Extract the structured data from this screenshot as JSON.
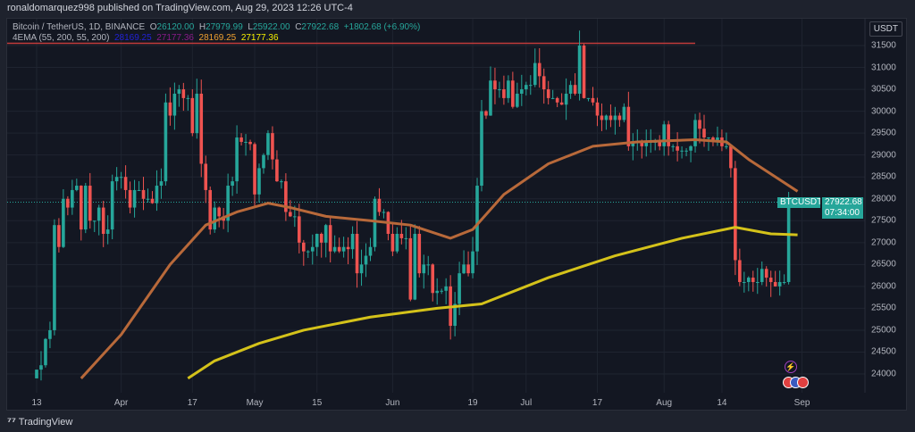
{
  "header": {
    "published": "ronaldomarquez998 published on TradingView.com, Aug 29, 2023 12:26 UTC-4"
  },
  "legend": {
    "symbol": "Bitcoin / TetherUS, 1D, BINANCE",
    "o_label": "O",
    "o": "26120.00",
    "h_label": "H",
    "h": "27979.99",
    "l_label": "L",
    "l": "25922.00",
    "c_label": "C",
    "c": "27922.68",
    "change": "+1802.68 (+6.90%)",
    "ema_name": "4EMA (55, 200, 55, 200)",
    "ema_vals": [
      "28169.25",
      "27177.36",
      "28169.25",
      "27177.36"
    ],
    "ema_colors": [
      "#2121d6",
      "#8a1a8a",
      "#f0a030",
      "#f5f000"
    ]
  },
  "currency": "USDT",
  "price_axis": [
    31500,
    31000,
    30500,
    30000,
    29500,
    29000,
    28500,
    28000,
    27500,
    27000,
    26500,
    26000,
    25500,
    25000,
    24500,
    24000
  ],
  "time_axis": [
    {
      "label": "13",
      "i": 0
    },
    {
      "label": "Apr",
      "i": 19
    },
    {
      "label": "17",
      "i": 35
    },
    {
      "label": "May",
      "i": 49
    },
    {
      "label": "15",
      "i": 63
    },
    {
      "label": "Jun",
      "i": 80
    },
    {
      "label": "19",
      "i": 98
    },
    {
      "label": "Jul",
      "i": 110
    },
    {
      "label": "17",
      "i": 126
    },
    {
      "label": "Aug",
      "i": 141
    },
    {
      "label": "14",
      "i": 154
    },
    {
      "label": "Sep",
      "i": 172
    }
  ],
  "last_price": {
    "symbol": "BTCUSDT",
    "price": "27922.68",
    "countdown": "07:34:00",
    "value": 27922.68
  },
  "resistance_level": 31550,
  "colors": {
    "up": "#26a69a",
    "down": "#ef5350",
    "ema55": "#b8693a",
    "ema200": "#d4c21a",
    "resistance": "#c23b3b"
  },
  "closes": [
    24100,
    24200,
    24800,
    25000,
    27400,
    26900,
    28000,
    27800,
    28200,
    28300,
    27300,
    28300,
    27500,
    27500,
    27800,
    27200,
    27300,
    28400,
    28500,
    28500,
    28200,
    27800,
    28200,
    28200,
    28000,
    28000,
    27900,
    28300,
    28400,
    30200,
    29900,
    30400,
    30500,
    30300,
    30300,
    29500,
    30400,
    28800,
    28200,
    27300,
    27800,
    27600,
    27500,
    28300,
    28400,
    29400,
    29300,
    29300,
    29250,
    28100,
    28700,
    29000,
    29500,
    28900,
    28400,
    28400,
    27700,
    27600,
    27600,
    27000,
    26800,
    26800,
    26900,
    27200,
    27000,
    27400,
    26800,
    26900,
    26800,
    26900,
    26850,
    27200,
    26300,
    26500,
    26700,
    26900,
    28000,
    27700,
    27700,
    27200,
    26800,
    27200,
    27100,
    27100,
    25700,
    27200,
    26300,
    26500,
    26500,
    25850,
    25900,
    25900,
    26000,
    25100,
    25600,
    26300,
    26500,
    26300,
    26800,
    28300,
    30000,
    29900,
    30700,
    30500,
    30500,
    30300,
    30700,
    30100,
    30400,
    30500,
    30600,
    30600,
    31100,
    30800,
    30500,
    30300,
    30300,
    30200,
    30150,
    30400,
    30600,
    30400,
    31500,
    30300,
    30300,
    30200,
    29900,
    29800,
    29900,
    29800,
    29900,
    29800,
    30100,
    29200,
    29300,
    29300,
    29200,
    29300,
    29300,
    29300,
    29200,
    29700,
    29200,
    29200,
    29100,
    29100,
    29100,
    29200,
    29800,
    29600,
    29400,
    29400,
    29300,
    29400,
    29200,
    29200,
    28700,
    26600,
    26100,
    26100,
    26200,
    26100,
    26100,
    26400,
    26200,
    26100,
    26000,
    26100,
    26100,
    27922.68
  ],
  "first_open": 23900,
  "ema55": [
    [
      10,
      23900
    ],
    [
      19,
      24900
    ],
    [
      30,
      26500
    ],
    [
      38,
      27400
    ],
    [
      45,
      27700
    ],
    [
      52,
      27900
    ],
    [
      57,
      27800
    ],
    [
      65,
      27600
    ],
    [
      75,
      27500
    ],
    [
      84,
      27400
    ],
    [
      93,
      27100
    ],
    [
      98,
      27300
    ],
    [
      105,
      28100
    ],
    [
      115,
      28800
    ],
    [
      125,
      29200
    ],
    [
      135,
      29300
    ],
    [
      148,
      29350
    ],
    [
      155,
      29300
    ],
    [
      160,
      28900
    ],
    [
      171,
      28170
    ]
  ],
  "ema200": [
    [
      34,
      23900
    ],
    [
      40,
      24300
    ],
    [
      50,
      24700
    ],
    [
      60,
      25000
    ],
    [
      75,
      25300
    ],
    [
      90,
      25500
    ],
    [
      100,
      25600
    ],
    [
      115,
      26200
    ],
    [
      130,
      26700
    ],
    [
      145,
      27100
    ],
    [
      157,
      27350
    ],
    [
      165,
      27200
    ],
    [
      171,
      27177
    ]
  ],
  "footer": {
    "brand": "TradingView"
  }
}
